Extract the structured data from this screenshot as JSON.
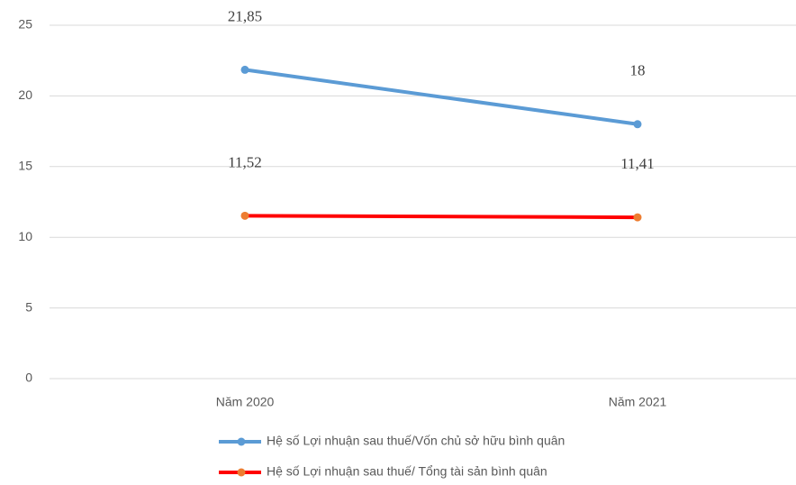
{
  "chart_data": {
    "type": "line",
    "categories": [
      "Năm 2020",
      "Năm 2021"
    ],
    "series": [
      {
        "name": "Hệ số Lợi nhuận sau thuế/Vốn chủ sở hữu bình quân",
        "color": "#5b9bd5",
        "marker_color": "#5b9bd5",
        "values": [
          21.85,
          18
        ],
        "value_labels": [
          "21,85",
          "18"
        ]
      },
      {
        "name": "Hệ số Lợi nhuận sau thuế/ Tổng tài sản bình quân",
        "color": "#ff0000",
        "marker_color": "#ed7d31",
        "values": [
          11.52,
          11.41
        ],
        "value_labels": [
          "11,52",
          "11,41"
        ]
      }
    ],
    "ylim": [
      0,
      25
    ],
    "yticks": [
      0,
      5,
      10,
      15,
      20,
      25
    ],
    "grid": true,
    "legend": "bottom"
  }
}
